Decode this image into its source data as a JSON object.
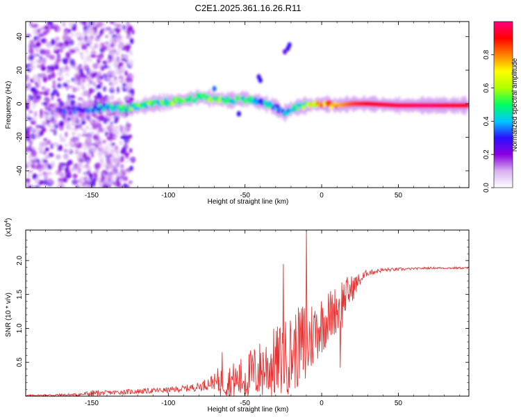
{
  "title": "C2E1.2025.361.16.26.R11",
  "colors": {
    "background": "#ffffff",
    "snr_line": "#e53030",
    "axis": "#000000"
  },
  "chart_data": [
    {
      "type": "heatmap",
      "name": "spectrogram",
      "xlabel": "Height of straight line (km)",
      "ylabel": "Frequency (Hz)",
      "xlim": [
        -193,
        96
      ],
      "ylim": [
        -50,
        49
      ],
      "x_ticks": [
        "-150",
        "-100",
        "-50",
        "0",
        "50"
      ],
      "x_tick_values": [
        -150,
        -100,
        -50,
        0,
        50
      ],
      "y_ticks": [
        "-40",
        "-20",
        "0",
        "20",
        "40"
      ],
      "y_tick_values": [
        -40,
        -20,
        0,
        20,
        40
      ],
      "colorbar": {
        "label": "Normalized spectral amplitude",
        "range": [
          0,
          1
        ],
        "ticks": [
          "0.0",
          "0.2",
          "0.4",
          "0.6",
          "0.8"
        ],
        "tick_values": [
          0.0,
          0.2,
          0.4,
          0.6,
          0.8
        ],
        "colormap": [
          "#ffffff",
          "#d8b0f0",
          "#8a00e0",
          "#2a10ff",
          "#00c8ff",
          "#00ff60",
          "#b0ff00",
          "#ffff00",
          "#ff8000",
          "#ff0000",
          "#ff0080"
        ]
      },
      "ridge": {
        "description_values": "dominant frequency band vs height",
        "x": [
          -160,
          -150,
          -140,
          -130,
          -120,
          -110,
          -100,
          -90,
          -80,
          -70,
          -60,
          -50,
          -40,
          -30,
          -25,
          -20,
          -10,
          0,
          10,
          20,
          30,
          50,
          70,
          96
        ],
        "y": [
          -4,
          -3,
          -2,
          -3,
          -2,
          0,
          1,
          2,
          4,
          3,
          2,
          3,
          1,
          -2,
          -6,
          -3,
          -1,
          0,
          -1,
          0,
          0,
          -1,
          -1,
          -1
        ],
        "amplitude": [
          0.25,
          0.35,
          0.4,
          0.45,
          0.5,
          0.5,
          0.5,
          0.55,
          0.5,
          0.55,
          0.5,
          0.45,
          0.4,
          0.35,
          0.3,
          0.4,
          0.55,
          0.8,
          0.75,
          0.85,
          0.9,
          0.95,
          0.98,
          0.9
        ]
      }
    },
    {
      "type": "line",
      "name": "snr",
      "xlabel": "Height of straight line (km)",
      "ylabel": "SNR (10 * v/v)",
      "y_multiplier": "(x10",
      "y_multiplier_exp": "4",
      "y_multiplier_close": ")",
      "xlim": [
        -193,
        96
      ],
      "ylim": [
        0,
        2.45
      ],
      "x_ticks": [
        "-150",
        "-100",
        "-50",
        "0",
        "50"
      ],
      "x_tick_values": [
        -150,
        -100,
        -50,
        0,
        50
      ],
      "y_ticks": [
        "0.5",
        "1.0",
        "1.5",
        "2.0"
      ],
      "y_tick_values": [
        0.5,
        1.0,
        1.5,
        2.0
      ],
      "envelope": {
        "x": [
          -193,
          -160,
          -150,
          -140,
          -120,
          -100,
          -90,
          -80,
          -70,
          -65,
          -60,
          -55,
          -50,
          -45,
          -40,
          -35,
          -30,
          -25,
          -20,
          -15,
          -12,
          -10,
          -8,
          -5,
          0,
          5,
          10,
          12,
          15,
          20,
          25,
          30,
          40,
          50,
          60,
          70,
          80,
          96
        ],
        "mean": [
          0.01,
          0.02,
          0.04,
          0.05,
          0.07,
          0.09,
          0.11,
          0.14,
          0.22,
          0.33,
          0.3,
          0.32,
          0.38,
          0.45,
          0.52,
          0.6,
          0.65,
          0.72,
          0.8,
          0.9,
          0.95,
          1.0,
          1.0,
          1.1,
          1.2,
          1.3,
          1.4,
          1.45,
          1.55,
          1.65,
          1.75,
          1.82,
          1.86,
          1.87,
          1.88,
          1.89,
          1.89,
          1.89
        ],
        "spread": [
          0.01,
          0.03,
          0.06,
          0.04,
          0.05,
          0.05,
          0.06,
          0.08,
          0.15,
          0.28,
          0.25,
          0.3,
          0.35,
          0.4,
          0.45,
          0.5,
          0.55,
          0.55,
          0.6,
          0.6,
          0.7,
          0.8,
          0.6,
          0.5,
          0.45,
          0.4,
          0.35,
          0.5,
          0.3,
          0.2,
          0.1,
          0.06,
          0.04,
          0.03,
          0.02,
          0.02,
          0.02,
          0.02
        ]
      },
      "peaks": [
        {
          "x": -10,
          "y": 2.45
        },
        {
          "x": -25,
          "y": 1.95
        },
        {
          "x": 12,
          "y": 0.42
        },
        {
          "x": -65,
          "y": 0.65
        }
      ]
    }
  ]
}
